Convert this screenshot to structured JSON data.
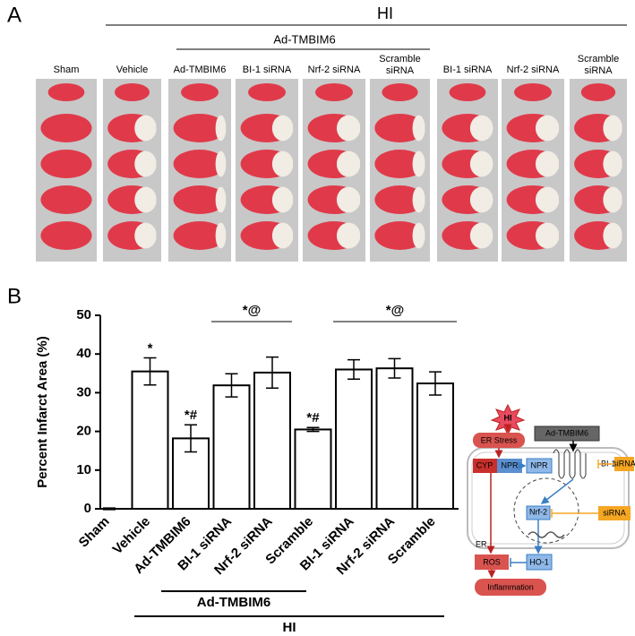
{
  "panel_a": {
    "label": "A",
    "group": "HI",
    "subgroup": "Ad-TMBIM6",
    "columns": [
      "Sham",
      "Vehicle",
      "Ad-TMBIM6",
      "BI-1 siRNA",
      "Nrf-2 siRNA",
      [
        "Scramble",
        "siRNA"
      ],
      "BI-1 siRNA",
      "Nrf-2 siRNA",
      [
        "Scramble",
        "siRNA"
      ]
    ]
  },
  "chart_data": {
    "type": "bar",
    "panel_label": "B",
    "y_label": "Percent Infarct Area (%)",
    "categories": [
      "Sham",
      "Vehicle",
      "Ad-TMBIM6",
      "BI-1 siRNA",
      "Nrf-2 siRNA",
      "Scramble",
      "BI-1 siRNA",
      "Nrf-2 siRNA",
      "Scramble"
    ],
    "values": [
      0,
      35.5,
      18.2,
      31.9,
      35.2,
      20.5,
      36,
      36.3,
      32.4
    ],
    "errors": [
      0.2,
      3.5,
      3.5,
      3,
      4,
      0.5,
      2.5,
      2.5,
      3
    ],
    "color": "#ffffff",
    "ylim": [
      0,
      50
    ],
    "yticks": [
      0,
      10,
      20,
      30,
      40,
      50
    ],
    "bar_annotations": [
      null,
      "*",
      "*#",
      null,
      null,
      "*#",
      null,
      null,
      null
    ],
    "group_annotations": [
      "*@",
      "*@"
    ],
    "group_labels": [
      "Ad-TMBIM6",
      "HI"
    ]
  },
  "diagram": {
    "hi": "HI",
    "er_stress": "ER Stress",
    "ad": "Ad-TMBIM6",
    "cyp": "CYP",
    "npr1": "NPR",
    "npr2": "NPR",
    "bi1": "BI-1",
    "sirna1": "siRNA",
    "nrf2": "Nrf-2",
    "sirna2": "siRNA",
    "er": "ER",
    "ros": "ROS",
    "ho1": "HO-1",
    "inflammation": "Inflammation"
  }
}
